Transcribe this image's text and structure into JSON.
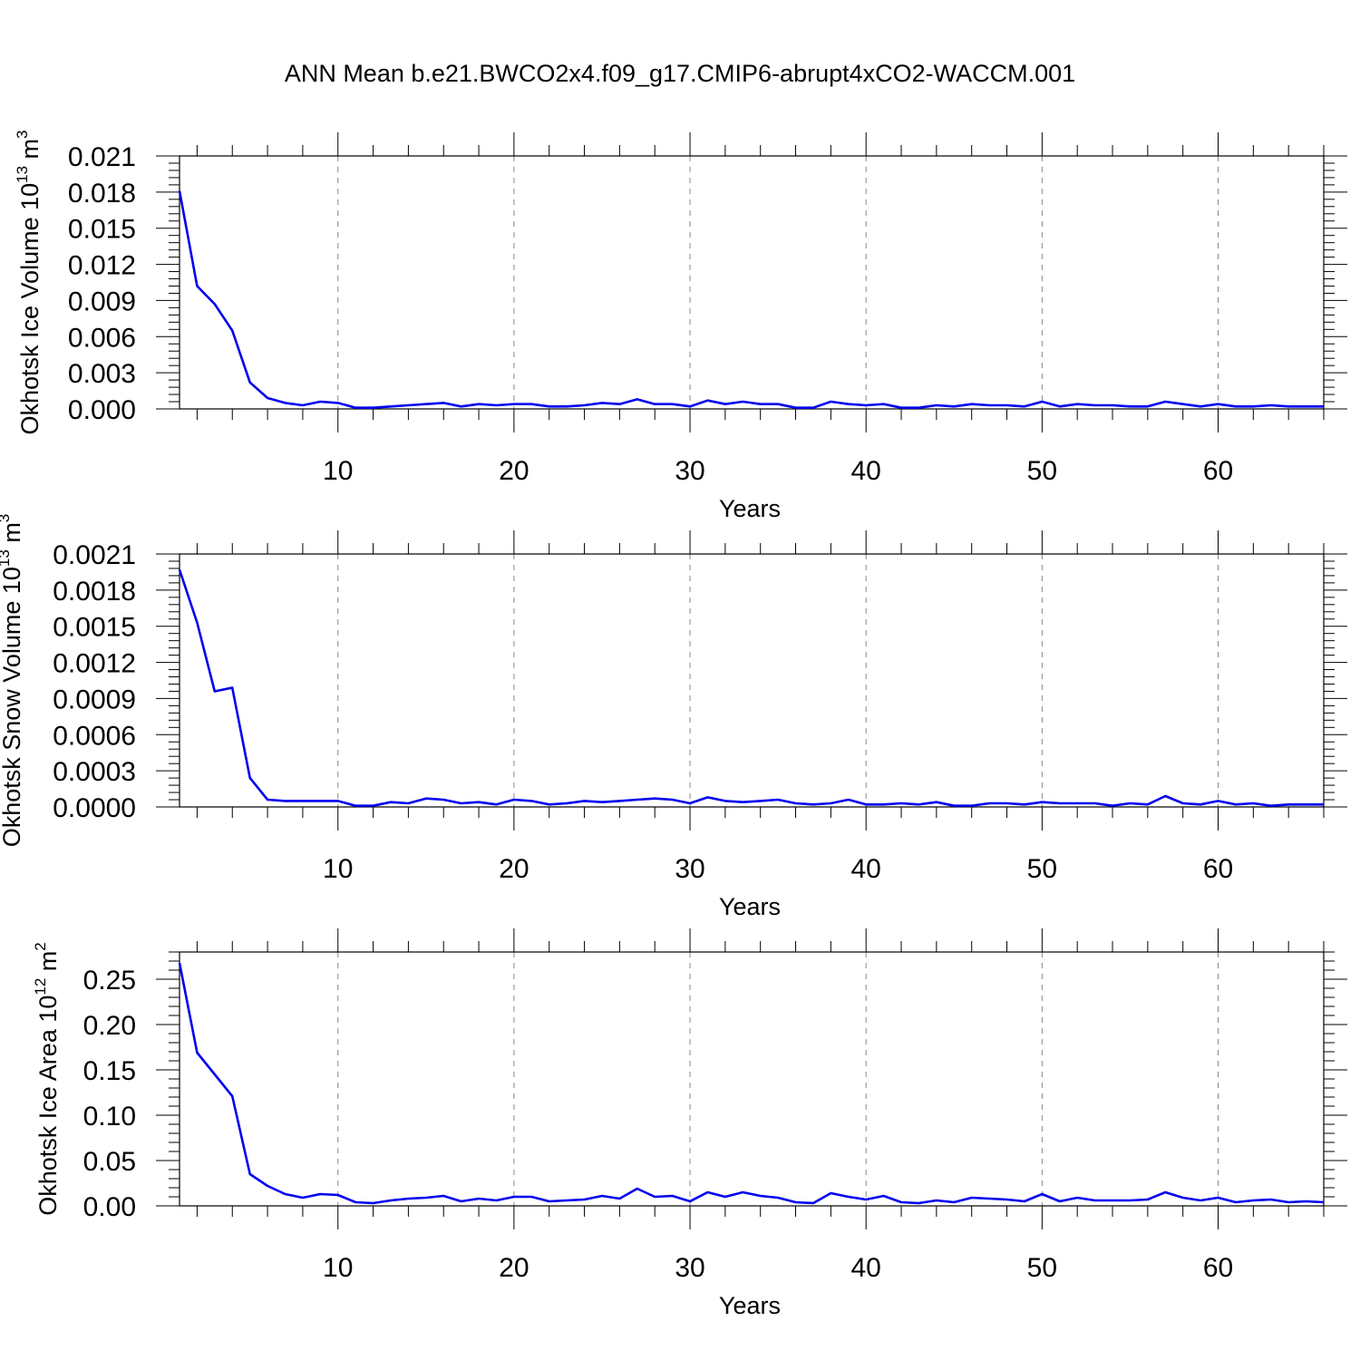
{
  "figure": {
    "title": "ANN Mean b.e21.BWCO2x4.f09_g17.CMIP6-abrupt4xCO2-WACCM.001"
  },
  "style": {
    "line_color": "#0000ee",
    "grid_color": "#888888",
    "axis_color": "#000000"
  },
  "chart_data": [
    {
      "type": "line",
      "xlabel": "Years",
      "ylabel": {
        "text": "Okhotsk Ice Volume 10",
        "sup1": "13",
        "mid": " m",
        "sup2": "3"
      },
      "xlim": [
        1,
        66
      ],
      "ylim": [
        0,
        0.021
      ],
      "xticks": [
        10,
        20,
        30,
        40,
        50,
        60
      ],
      "yticks": [
        "0.000",
        "0.003",
        "0.006",
        "0.009",
        "0.012",
        "0.015",
        "0.018",
        "0.021"
      ],
      "ymajor_step": 0.003,
      "grid": "x-dashed",
      "series": [
        {
          "x": [
            1,
            2,
            3,
            4,
            5,
            6,
            7,
            8,
            9,
            10,
            11,
            12,
            13,
            14,
            15,
            16,
            17,
            18,
            19,
            20,
            21,
            22,
            23,
            24,
            25,
            26,
            27,
            28,
            29,
            30,
            31,
            32,
            33,
            34,
            35,
            36,
            37,
            38,
            39,
            40,
            41,
            42,
            43,
            44,
            45,
            46,
            47,
            48,
            49,
            50,
            51,
            52,
            53,
            54,
            55,
            56,
            57,
            58,
            59,
            60,
            61,
            62,
            63,
            64,
            65,
            66
          ],
          "y": [
            0.0181,
            0.0102,
            0.0087,
            0.0065,
            0.0022,
            0.0009,
            0.0005,
            0.0003,
            0.0006,
            0.0005,
            0.0001,
            0.0001,
            0.0002,
            0.0003,
            0.0004,
            0.0005,
            0.0002,
            0.0004,
            0.0003,
            0.0004,
            0.0004,
            0.0002,
            0.0002,
            0.0003,
            0.0005,
            0.0004,
            0.0008,
            0.0004,
            0.0004,
            0.0002,
            0.0007,
            0.0004,
            0.0006,
            0.0004,
            0.0004,
            0.0001,
            0.0001,
            0.0006,
            0.0004,
            0.0003,
            0.0004,
            0.0001,
            0.0001,
            0.0003,
            0.0002,
            0.0004,
            0.0003,
            0.0003,
            0.0002,
            0.0006,
            0.0002,
            0.0004,
            0.0003,
            0.0003,
            0.0002,
            0.0002,
            0.0006,
            0.0004,
            0.0002,
            0.0004,
            0.0002,
            0.0002,
            0.0003,
            0.0002,
            0.0002,
            0.0002
          ]
        }
      ]
    },
    {
      "type": "line",
      "xlabel": "Years",
      "ylabel": {
        "text": "Okhotsk Snow Volume 10",
        "sup1": "13",
        "mid": " m",
        "sup2": "3"
      },
      "xlim": [
        1,
        66
      ],
      "ylim": [
        0,
        0.0021
      ],
      "xticks": [
        10,
        20,
        30,
        40,
        50,
        60
      ],
      "yticks": [
        "0.0000",
        "0.0003",
        "0.0006",
        "0.0009",
        "0.0012",
        "0.0015",
        "0.0018",
        "0.0021"
      ],
      "ymajor_step": 0.0003,
      "grid": "x-dashed",
      "series": [
        {
          "x": [
            1,
            2,
            3,
            4,
            5,
            6,
            7,
            8,
            9,
            10,
            11,
            12,
            13,
            14,
            15,
            16,
            17,
            18,
            19,
            20,
            21,
            22,
            23,
            24,
            25,
            26,
            27,
            28,
            29,
            30,
            31,
            32,
            33,
            34,
            35,
            36,
            37,
            38,
            39,
            40,
            41,
            42,
            43,
            44,
            45,
            46,
            47,
            48,
            49,
            50,
            51,
            52,
            53,
            54,
            55,
            56,
            57,
            58,
            59,
            60,
            61,
            62,
            63,
            64,
            65,
            66
          ],
          "y": [
            0.00197,
            0.00153,
            0.00096,
            0.00099,
            0.00024,
            6e-05,
            5e-05,
            5e-05,
            5e-05,
            5e-05,
            1e-05,
            1e-05,
            4e-05,
            3e-05,
            7e-05,
            6e-05,
            3e-05,
            4e-05,
            2e-05,
            6e-05,
            5e-05,
            2e-05,
            3e-05,
            5e-05,
            4e-05,
            5e-05,
            6e-05,
            7e-05,
            6e-05,
            3e-05,
            8e-05,
            5e-05,
            4e-05,
            5e-05,
            6e-05,
            3e-05,
            2e-05,
            3e-05,
            6e-05,
            2e-05,
            2e-05,
            3e-05,
            2e-05,
            4e-05,
            1e-05,
            1e-05,
            3e-05,
            3e-05,
            2e-05,
            4e-05,
            3e-05,
            3e-05,
            3e-05,
            1e-05,
            3e-05,
            2e-05,
            9e-05,
            3e-05,
            2e-05,
            5e-05,
            2e-05,
            3e-05,
            1e-05,
            2e-05,
            2e-05,
            2e-05
          ]
        }
      ]
    },
    {
      "type": "line",
      "xlabel": "Years",
      "ylabel": {
        "text": "Okhotsk Ice Area 10",
        "sup1": "12",
        "mid": " m",
        "sup2": "2"
      },
      "xlim": [
        1,
        66
      ],
      "ylim": [
        0,
        0.28
      ],
      "xticks": [
        10,
        20,
        30,
        40,
        50,
        60
      ],
      "yticks": [
        "0.00",
        "0.05",
        "0.10",
        "0.15",
        "0.20",
        "0.25"
      ],
      "ymajor_step": 0.05,
      "grid": "x-dashed",
      "series": [
        {
          "x": [
            1,
            2,
            3,
            4,
            5,
            6,
            7,
            8,
            9,
            10,
            11,
            12,
            13,
            14,
            15,
            16,
            17,
            18,
            19,
            20,
            21,
            22,
            23,
            24,
            25,
            26,
            27,
            28,
            29,
            30,
            31,
            32,
            33,
            34,
            35,
            36,
            37,
            38,
            39,
            40,
            41,
            42,
            43,
            44,
            45,
            46,
            47,
            48,
            49,
            50,
            51,
            52,
            53,
            54,
            55,
            56,
            57,
            58,
            59,
            60,
            61,
            62,
            63,
            64,
            65,
            66
          ],
          "y": [
            0.268,
            0.169,
            0.145,
            0.121,
            0.035,
            0.022,
            0.013,
            0.009,
            0.013,
            0.012,
            0.004,
            0.003,
            0.006,
            0.008,
            0.009,
            0.011,
            0.005,
            0.008,
            0.006,
            0.01,
            0.01,
            0.005,
            0.006,
            0.007,
            0.011,
            0.008,
            0.019,
            0.01,
            0.011,
            0.005,
            0.015,
            0.01,
            0.015,
            0.011,
            0.009,
            0.004,
            0.003,
            0.014,
            0.01,
            0.007,
            0.011,
            0.004,
            0.003,
            0.006,
            0.004,
            0.009,
            0.008,
            0.007,
            0.005,
            0.013,
            0.005,
            0.009,
            0.006,
            0.006,
            0.006,
            0.007,
            0.015,
            0.009,
            0.006,
            0.009,
            0.004,
            0.006,
            0.007,
            0.004,
            0.005,
            0.004
          ]
        }
      ]
    }
  ]
}
